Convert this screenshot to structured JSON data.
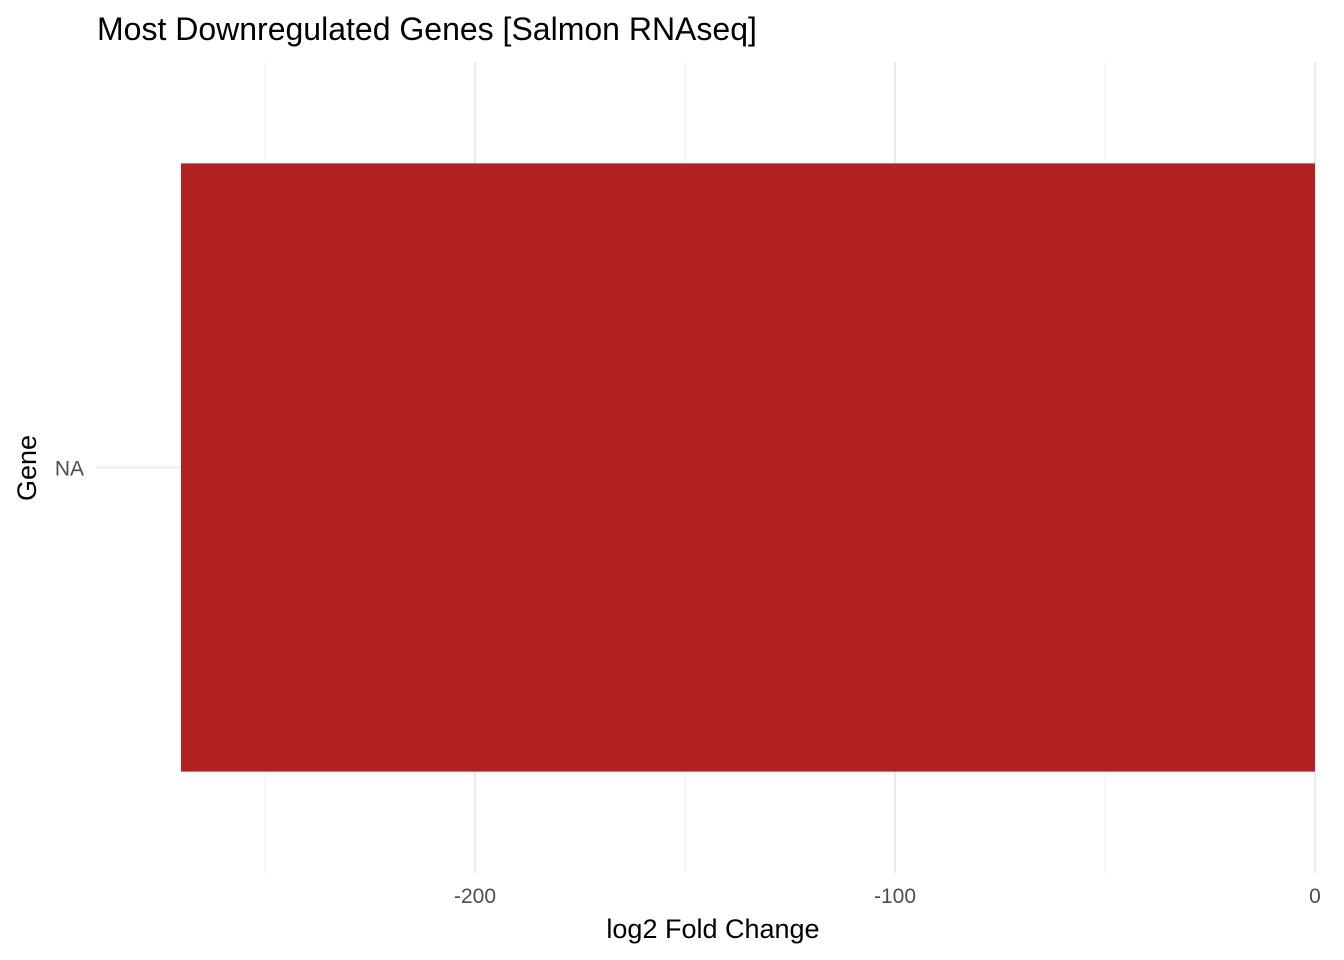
{
  "chart_data": {
    "type": "bar",
    "orientation": "horizontal",
    "title": "Most Downregulated Genes [Salmon RNAseq]",
    "xlabel": "log2 Fold Change",
    "ylabel": "Gene",
    "categories": [
      "NA"
    ],
    "values": [
      -270
    ],
    "xlim": [
      -290,
      0
    ],
    "xticks": [
      -200,
      -100,
      0
    ],
    "xtick_labels": [
      "-200",
      "-100",
      "0"
    ],
    "grid": true,
    "legend": "none",
    "bar_color": "#B22222"
  }
}
